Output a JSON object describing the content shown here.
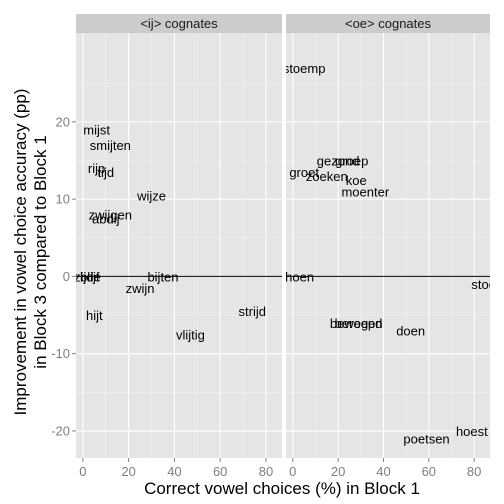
{
  "chart_data": {
    "type": "scatter",
    "title": "",
    "xlabel": "Correct vowel choices (%) in Block 1",
    "ylabel_lines": [
      "Improvement in vowel choice accuracy (pp)",
      "in Block 3 compared to Block 1"
    ],
    "xlim": [
      -3,
      87
    ],
    "ylim": [
      -23.5,
      31.5
    ],
    "x_ticks": [
      0,
      20,
      40,
      60,
      80
    ],
    "y_ticks": [
      -20,
      -10,
      0,
      10,
      20
    ],
    "grid": true,
    "reference_line_y": 0,
    "panels": [
      {
        "strip_label": "<ij> cognates",
        "points": [
          {
            "label": "mijst",
            "x": 6,
            "y": 19
          },
          {
            "label": "smijten",
            "x": 12,
            "y": 17
          },
          {
            "label": "rijp",
            "x": 6,
            "y": 14
          },
          {
            "label": "tijd",
            "x": 10,
            "y": 13.5
          },
          {
            "label": "wijze",
            "x": 30,
            "y": 10.5
          },
          {
            "label": "zwijgen",
            "x": 12,
            "y": 8
          },
          {
            "label": "abdij",
            "x": 10,
            "y": 7.5
          },
          {
            "label": "zijde",
            "x": 2,
            "y": 0
          },
          {
            "label": "blijf",
            "x": 3,
            "y": 0
          },
          {
            "label": "bijten",
            "x": 35,
            "y": 0
          },
          {
            "label": "zwijn",
            "x": 25,
            "y": -1.5
          },
          {
            "label": "hijt",
            "x": 5,
            "y": -5
          },
          {
            "label": "strijd",
            "x": 74,
            "y": -4.5
          },
          {
            "label": "vlijtig",
            "x": 47,
            "y": -7.5
          }
        ]
      },
      {
        "strip_label": "<oe> cognates",
        "points": [
          {
            "label": "stoemp",
            "x": 5,
            "y": 27
          },
          {
            "label": "gezond",
            "x": 20,
            "y": 15
          },
          {
            "label": "groep",
            "x": 26,
            "y": 15
          },
          {
            "label": "groet",
            "x": 5,
            "y": 13.5
          },
          {
            "label": "zoeken",
            "x": 15,
            "y": 13
          },
          {
            "label": "koe",
            "x": 28,
            "y": 12.5
          },
          {
            "label": "moenter",
            "x": 32,
            "y": 11
          },
          {
            "label": "hoen",
            "x": 3,
            "y": 0
          },
          {
            "label": "stoet",
            "x": 85,
            "y": -1
          },
          {
            "label": "bewegen",
            "x": 28,
            "y": -6
          },
          {
            "label": "beroepd",
            "x": 29,
            "y": -6
          },
          {
            "label": "doen",
            "x": 52,
            "y": -7
          },
          {
            "label": "poetsen",
            "x": 59,
            "y": -21
          },
          {
            "label": "hoest",
            "x": 79,
            "y": -20
          }
        ]
      }
    ]
  }
}
